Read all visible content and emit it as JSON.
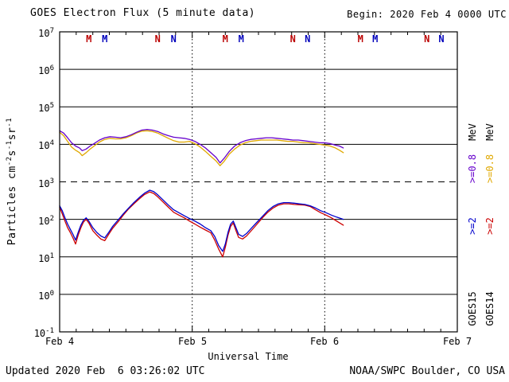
{
  "footer": {
    "updated": "Updated 2020 Feb  6 03:26:02 UTC",
    "source": "NOAA/SWPC Boulder, CO USA"
  },
  "legend": {
    "columns": [
      {
        "satellite": "GOES15",
        "mev": "MeV",
        "e08": ">=0.8",
        "e2": ">=2",
        "e08_color": "#6600cc",
        "e2_color": "#0000cc"
      },
      {
        "satellite": "GOES14",
        "mev": "MeV",
        "e08": ">=0.8",
        "e2": ">=2",
        "e08_color": "#e0a800",
        "e2_color": "#cc0000"
      }
    ]
  },
  "chart_data": {
    "type": "line",
    "title": "GOES Electron Flux (5 minute data)",
    "begin": "Begin: 2020 Feb 4 0000 UTC",
    "xlabel": "Universal Time",
    "ylabel_parts": [
      {
        "t": "Particles cm"
      },
      {
        "sup": "-2"
      },
      {
        "t": "s"
      },
      {
        "sup": "-1"
      },
      {
        "t": "sr"
      },
      {
        "sup": "-1"
      }
    ],
    "y_scale": "log",
    "ylim": [
      0.1,
      10000000.0
    ],
    "y_ticks_exponents": [
      7,
      6,
      5,
      4,
      3,
      2,
      1,
      0,
      -1
    ],
    "threshold_value": 1000.0,
    "x_days": [
      0,
      3
    ],
    "x_ticks": [
      {
        "day": 0,
        "label": "Feb 4"
      },
      {
        "day": 1,
        "label": "Feb 5"
      },
      {
        "day": 2,
        "label": "Feb 6"
      },
      {
        "day": 3,
        "label": "Feb 7"
      }
    ],
    "day_gridlines": [
      1,
      2
    ],
    "local_time_markers": [
      {
        "label": "M",
        "day": 0.22,
        "color": "#bb0000"
      },
      {
        "label": "M",
        "day": 0.34,
        "color": "#0000bb"
      },
      {
        "label": "N",
        "day": 0.74,
        "color": "#bb0000"
      },
      {
        "label": "N",
        "day": 0.86,
        "color": "#0000bb"
      },
      {
        "label": "M",
        "day": 1.25,
        "color": "#bb0000"
      },
      {
        "label": "M",
        "day": 1.37,
        "color": "#0000bb"
      },
      {
        "label": "N",
        "day": 1.76,
        "color": "#bb0000"
      },
      {
        "label": "N",
        "day": 1.87,
        "color": "#0000bb"
      },
      {
        "label": "M",
        "day": 2.27,
        "color": "#bb0000"
      },
      {
        "label": "M",
        "day": 2.38,
        "color": "#0000bb"
      },
      {
        "label": "N",
        "day": 2.77,
        "color": "#bb0000"
      },
      {
        "label": "N",
        "day": 2.88,
        "color": "#0000bb"
      }
    ],
    "series": [
      {
        "id": "goes14-e08",
        "name": "GOES14 >=0.8 MeV",
        "color": "#e0a800",
        "points": [
          [
            0.0,
            21000.0
          ],
          [
            0.03,
            17000.0
          ],
          [
            0.06,
            12000.0
          ],
          [
            0.09,
            8500.0
          ],
          [
            0.12,
            7000.0
          ],
          [
            0.15,
            6000.0
          ],
          [
            0.17,
            5000.0
          ],
          [
            0.2,
            6000.0
          ],
          [
            0.23,
            7500.0
          ],
          [
            0.26,
            9000.0
          ],
          [
            0.3,
            11500.0
          ],
          [
            0.34,
            13500.0
          ],
          [
            0.38,
            14500.0
          ],
          [
            0.42,
            14000.0
          ],
          [
            0.46,
            14000.0
          ],
          [
            0.5,
            15000.0
          ],
          [
            0.54,
            17000.0
          ],
          [
            0.58,
            20000.0
          ],
          [
            0.62,
            22500.0
          ],
          [
            0.66,
            23000.0
          ],
          [
            0.7,
            22000.0
          ],
          [
            0.74,
            20000.0
          ],
          [
            0.78,
            17000.0
          ],
          [
            0.82,
            14500.0
          ],
          [
            0.86,
            12500.0
          ],
          [
            0.9,
            11500.0
          ],
          [
            0.94,
            11500.0
          ],
          [
            0.98,
            12000.0
          ],
          [
            1.02,
            10500.0
          ],
          [
            1.06,
            8500.0
          ],
          [
            1.1,
            6500.0
          ],
          [
            1.14,
            4800.0
          ],
          [
            1.18,
            3600.0
          ],
          [
            1.21,
            2700.0
          ],
          [
            1.24,
            3500.0
          ],
          [
            1.28,
            5500.0
          ],
          [
            1.32,
            7500.0
          ],
          [
            1.36,
            9500.0
          ],
          [
            1.4,
            11000.0
          ],
          [
            1.44,
            12000.0
          ],
          [
            1.48,
            12500.0
          ],
          [
            1.52,
            13000.0
          ],
          [
            1.56,
            13000.0
          ],
          [
            1.6,
            13000.0
          ],
          [
            1.64,
            13000.0
          ],
          [
            1.68,
            12500.0
          ],
          [
            1.72,
            12000.0
          ],
          [
            1.76,
            12000.0
          ],
          [
            1.8,
            11500.0
          ],
          [
            1.84,
            11000.0
          ],
          [
            1.88,
            11000.0
          ],
          [
            1.92,
            10500.0
          ],
          [
            1.96,
            10000.0
          ],
          [
            2.0,
            9500.0
          ],
          [
            2.04,
            9000.0
          ],
          [
            2.08,
            8000.0
          ],
          [
            2.11,
            7000.0
          ],
          [
            2.14,
            6000.0
          ]
        ]
      },
      {
        "id": "goes15-e08",
        "name": "GOES15 >=0.8 MeV",
        "color": "#6600cc",
        "points": [
          [
            0.0,
            23000.0
          ],
          [
            0.03,
            20000.0
          ],
          [
            0.06,
            15000.0
          ],
          [
            0.09,
            11000.0
          ],
          [
            0.12,
            9000.0
          ],
          [
            0.15,
            8000.0
          ],
          [
            0.17,
            6800.0
          ],
          [
            0.2,
            7500.0
          ],
          [
            0.23,
            9000.0
          ],
          [
            0.26,
            10500.0
          ],
          [
            0.3,
            13000.0
          ],
          [
            0.34,
            15000.0
          ],
          [
            0.38,
            16000.0
          ],
          [
            0.42,
            15500.0
          ],
          [
            0.46,
            15000.0
          ],
          [
            0.5,
            16000.0
          ],
          [
            0.54,
            18000.0
          ],
          [
            0.58,
            21000.0
          ],
          [
            0.62,
            24000.0
          ],
          [
            0.66,
            25000.0
          ],
          [
            0.7,
            24000.0
          ],
          [
            0.74,
            22000.0
          ],
          [
            0.78,
            19000.0
          ],
          [
            0.82,
            17000.0
          ],
          [
            0.86,
            15500.0
          ],
          [
            0.9,
            15000.0
          ],
          [
            0.94,
            14500.0
          ],
          [
            0.98,
            13500.0
          ],
          [
            1.02,
            12000.0
          ],
          [
            1.06,
            10000.0
          ],
          [
            1.1,
            8000.0
          ],
          [
            1.14,
            6000.0
          ],
          [
            1.18,
            4500.0
          ],
          [
            1.21,
            3200.0
          ],
          [
            1.24,
            4200.0
          ],
          [
            1.28,
            6500.0
          ],
          [
            1.32,
            9000.0
          ],
          [
            1.36,
            11000.0
          ],
          [
            1.4,
            12500.0
          ],
          [
            1.44,
            13500.0
          ],
          [
            1.48,
            14000.0
          ],
          [
            1.52,
            14500.0
          ],
          [
            1.56,
            15000.0
          ],
          [
            1.6,
            15000.0
          ],
          [
            1.64,
            14500.0
          ],
          [
            1.68,
            14000.0
          ],
          [
            1.72,
            13500.0
          ],
          [
            1.76,
            13000.0
          ],
          [
            1.8,
            13000.0
          ],
          [
            1.84,
            12500.0
          ],
          [
            1.88,
            12000.0
          ],
          [
            1.92,
            11500.0
          ],
          [
            1.96,
            11000.0
          ],
          [
            2.0,
            11000.0
          ],
          [
            2.04,
            10500.0
          ],
          [
            2.08,
            9500.0
          ],
          [
            2.11,
            9000.0
          ],
          [
            2.14,
            8000.0
          ]
        ]
      },
      {
        "id": "goes14-e2",
        "name": "GOES14 >=2 MeV",
        "color": "#cc0000",
        "points": [
          [
            0.0,
            210.0
          ],
          [
            0.02,
            140.0
          ],
          [
            0.04,
            90.0
          ],
          [
            0.06,
            60.0
          ],
          [
            0.08,
            45.0
          ],
          [
            0.1,
            32.0
          ],
          [
            0.12,
            22.0
          ],
          [
            0.14,
            38.0
          ],
          [
            0.16,
            60.0
          ],
          [
            0.18,
            85.0
          ],
          [
            0.2,
            100.0
          ],
          [
            0.22,
            80.0
          ],
          [
            0.25,
            50.0
          ],
          [
            0.28,
            38.0
          ],
          [
            0.31,
            30.0
          ],
          [
            0.34,
            27.0
          ],
          [
            0.37,
            40.0
          ],
          [
            0.4,
            58.0
          ],
          [
            0.44,
            85.0
          ],
          [
            0.48,
            130.0
          ],
          [
            0.52,
            190.0
          ],
          [
            0.56,
            260.0
          ],
          [
            0.6,
            350.0
          ],
          [
            0.64,
            460.0
          ],
          [
            0.68,
            540.0
          ],
          [
            0.71,
            490.0
          ],
          [
            0.74,
            400.0
          ],
          [
            0.78,
            290.0
          ],
          [
            0.82,
            210.0
          ],
          [
            0.86,
            155.0
          ],
          [
            0.9,
            130.0
          ],
          [
            0.94,
            110.0
          ],
          [
            0.98,
            90.0
          ],
          [
            1.02,
            75.0
          ],
          [
            1.06,
            62.0
          ],
          [
            1.1,
            52.0
          ],
          [
            1.14,
            44.0
          ],
          [
            1.17,
            28.0
          ],
          [
            1.2,
            16.0
          ],
          [
            1.23,
            10.0
          ],
          [
            1.25,
            18.0
          ],
          [
            1.27,
            38.0
          ],
          [
            1.29,
            65.0
          ],
          [
            1.31,
            80.0
          ],
          [
            1.33,
            50.0
          ],
          [
            1.35,
            33.0
          ],
          [
            1.38,
            30.0
          ],
          [
            1.41,
            36.0
          ],
          [
            1.45,
            52.0
          ],
          [
            1.49,
            75.0
          ],
          [
            1.53,
            110.0
          ],
          [
            1.57,
            155.0
          ],
          [
            1.61,
            200.0
          ],
          [
            1.65,
            240.0
          ],
          [
            1.69,
            260.0
          ],
          [
            1.73,
            260.0
          ],
          [
            1.77,
            250.0
          ],
          [
            1.81,
            245.0
          ],
          [
            1.85,
            240.0
          ],
          [
            1.89,
            220.0
          ],
          [
            1.93,
            180.0
          ],
          [
            1.97,
            150.0
          ],
          [
            2.01,
            130.0
          ],
          [
            2.05,
            110.0
          ],
          [
            2.09,
            90.0
          ],
          [
            2.14,
            70.0
          ]
        ]
      },
      {
        "id": "goes15-e2",
        "name": "GOES15 >=2 MeV",
        "color": "#0000cc",
        "points": [
          [
            0.0,
            230.0
          ],
          [
            0.02,
            170.0
          ],
          [
            0.04,
            110.0
          ],
          [
            0.06,
            75.0
          ],
          [
            0.08,
            55.0
          ],
          [
            0.1,
            40.0
          ],
          [
            0.12,
            28.0
          ],
          [
            0.14,
            45.0
          ],
          [
            0.16,
            70.0
          ],
          [
            0.18,
            95.0
          ],
          [
            0.2,
            110.0
          ],
          [
            0.22,
            90.0
          ],
          [
            0.25,
            60.0
          ],
          [
            0.28,
            45.0
          ],
          [
            0.31,
            36.0
          ],
          [
            0.34,
            32.0
          ],
          [
            0.37,
            45.0
          ],
          [
            0.4,
            65.0
          ],
          [
            0.44,
            95.0
          ],
          [
            0.48,
            140.0
          ],
          [
            0.52,
            200.0
          ],
          [
            0.56,
            280.0
          ],
          [
            0.6,
            380.0
          ],
          [
            0.64,
            500.0
          ],
          [
            0.68,
            600.0
          ],
          [
            0.71,
            550.0
          ],
          [
            0.74,
            450.0
          ],
          [
            0.78,
            330.0
          ],
          [
            0.82,
            240.0
          ],
          [
            0.86,
            180.0
          ],
          [
            0.9,
            150.0
          ],
          [
            0.94,
            125.0
          ],
          [
            0.98,
            105.0
          ],
          [
            1.02,
            90.0
          ],
          [
            1.06,
            75.0
          ],
          [
            1.1,
            60.0
          ],
          [
            1.14,
            50.0
          ],
          [
            1.17,
            35.0
          ],
          [
            1.2,
            20.0
          ],
          [
            1.23,
            14.0
          ],
          [
            1.25,
            22.0
          ],
          [
            1.27,
            45.0
          ],
          [
            1.29,
            75.0
          ],
          [
            1.31,
            90.0
          ],
          [
            1.33,
            60.0
          ],
          [
            1.35,
            40.0
          ],
          [
            1.38,
            35.0
          ],
          [
            1.41,
            42.0
          ],
          [
            1.45,
            60.0
          ],
          [
            1.49,
            85.0
          ],
          [
            1.53,
            120.0
          ],
          [
            1.57,
            170.0
          ],
          [
            1.61,
            220.0
          ],
          [
            1.65,
            260.0
          ],
          [
            1.69,
            280.0
          ],
          [
            1.73,
            280.0
          ],
          [
            1.77,
            270.0
          ],
          [
            1.81,
            260.0
          ],
          [
            1.85,
            250.0
          ],
          [
            1.89,
            230.0
          ],
          [
            1.93,
            200.0
          ],
          [
            1.97,
            170.0
          ],
          [
            2.01,
            150.0
          ],
          [
            2.05,
            130.0
          ],
          [
            2.09,
            115.0
          ],
          [
            2.14,
            100.0
          ]
        ]
      }
    ]
  }
}
